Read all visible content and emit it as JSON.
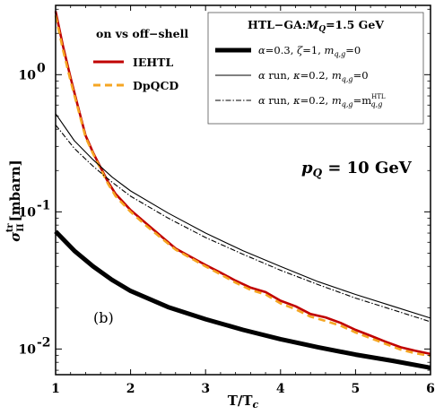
{
  "chart_data": {
    "type": "line",
    "xlabel": "T/T",
    "xlabel_sub": "c",
    "ylabel": "σ",
    "ylabel_sup": "tr",
    "ylabel_sub": "II",
    "ylabel_unit": "[mbarn]",
    "xlim": [
      1,
      6
    ],
    "ylim": [
      0.0065,
      3.2
    ],
    "yscale": "log",
    "x_ticks": [
      1,
      2,
      3,
      4,
      5,
      6
    ],
    "x_tick_labels": [
      "1",
      "2",
      "3",
      "4",
      "5",
      "6"
    ],
    "y_ticks": [
      1,
      0.1,
      0.01
    ],
    "y_tick_labels": [
      "10",
      "10",
      "10"
    ],
    "y_tick_exponents": [
      "0",
      "-1",
      "-2"
    ],
    "annotation": "p",
    "annotation_sub": "Q",
    "annotation_value": " = 10 GeV",
    "panel_label": "(b)",
    "legend_left": {
      "title": "on vs off−shell",
      "entries": [
        "IEHTL",
        "DpQCD"
      ]
    },
    "legend_right": {
      "title_prefix": "HTL−GA:",
      "title_var": "M",
      "title_sub": "Q",
      "title_suffix": "=1.5 GeV",
      "entries": [
        {
          "greek": "α",
          "rest": "=0.3, ",
          "greek2": "ζ",
          "rest2": "=1, ",
          "m": "m",
          "msub": "q,g",
          "tail": "=0",
          "msup": ""
        },
        {
          "greek": "α",
          "rest": " run, ",
          "greek2": "κ",
          "rest2": "=0.2, ",
          "m": "m",
          "msub": "q,g",
          "tail": "=0",
          "msup": ""
        },
        {
          "greek": "α",
          "rest": " run, ",
          "greek2": "κ",
          "rest2": "=0.2, ",
          "m": "m",
          "msub": "q,g",
          "tail": "=m",
          "msup": "HTL",
          "tailsub": "q,g"
        }
      ]
    },
    "series": [
      {
        "name": "IEHTL",
        "color": "#c00000",
        "x": [
          1.0,
          1.1,
          1.2,
          1.3,
          1.4,
          1.5,
          1.6,
          1.7,
          1.8,
          1.9,
          2.0,
          2.2,
          2.4,
          2.6,
          2.8,
          3.0,
          3.2,
          3.4,
          3.6,
          3.8,
          4.0,
          4.2,
          4.4,
          4.6,
          4.8,
          5.0,
          5.2,
          5.4,
          5.6,
          5.8,
          6.0
        ],
        "y": [
          2.9,
          1.6,
          0.95,
          0.58,
          0.36,
          0.27,
          0.21,
          0.165,
          0.135,
          0.118,
          0.103,
          0.083,
          0.067,
          0.054,
          0.047,
          0.041,
          0.036,
          0.0315,
          0.028,
          0.026,
          0.0225,
          0.0205,
          0.018,
          0.017,
          0.0155,
          0.0138,
          0.0125,
          0.0113,
          0.0103,
          0.0097,
          0.0092
        ]
      },
      {
        "name": "DpQCD",
        "color": "#f5a623",
        "x": [
          1.0,
          1.1,
          1.2,
          1.3,
          1.4,
          1.5,
          1.6,
          1.7,
          1.8,
          1.9,
          2.0,
          2.2,
          2.4,
          2.6,
          2.8,
          3.0,
          3.2,
          3.4,
          3.6,
          3.8,
          4.0,
          4.2,
          4.4,
          4.6,
          4.8,
          5.0,
          5.2,
          5.4,
          5.6,
          5.8,
          6.0
        ],
        "y": [
          2.7,
          1.5,
          0.9,
          0.56,
          0.35,
          0.265,
          0.205,
          0.16,
          0.13,
          0.114,
          0.1,
          0.08,
          0.065,
          0.053,
          0.046,
          0.04,
          0.035,
          0.0305,
          0.027,
          0.025,
          0.0215,
          0.0195,
          0.0172,
          0.016,
          0.0148,
          0.0132,
          0.012,
          0.0109,
          0.0099,
          0.0093,
          0.0089
        ]
      },
      {
        "name": "α=0.3, ζ=1, m=0",
        "color": "#000000",
        "x": [
          1.0,
          1.25,
          1.5,
          1.75,
          2.0,
          2.5,
          3.0,
          3.5,
          4.0,
          4.5,
          5.0,
          5.5,
          6.0
        ],
        "y": [
          0.072,
          0.052,
          0.04,
          0.032,
          0.0265,
          0.0202,
          0.0165,
          0.0138,
          0.0118,
          0.0103,
          0.0091,
          0.0082,
          0.0073
        ]
      },
      {
        "name": "α run, κ=0.2, m=0",
        "color": "#000000",
        "x": [
          1.0,
          1.25,
          1.5,
          1.75,
          2.0,
          2.5,
          3.0,
          3.5,
          4.0,
          4.5,
          5.0,
          5.5,
          6.0
        ],
        "y": [
          0.52,
          0.33,
          0.24,
          0.18,
          0.142,
          0.098,
          0.07,
          0.052,
          0.04,
          0.031,
          0.025,
          0.0205,
          0.0168
        ]
      },
      {
        "name": "α run, κ=0.2, m=m HTL",
        "color": "#000000",
        "x": [
          1.0,
          1.25,
          1.5,
          1.75,
          2.0,
          2.5,
          3.0,
          3.5,
          4.0,
          4.5,
          5.0,
          5.5,
          6.0
        ],
        "y": [
          0.43,
          0.29,
          0.215,
          0.165,
          0.13,
          0.09,
          0.065,
          0.049,
          0.0375,
          0.0295,
          0.0235,
          0.0193,
          0.0158
        ]
      }
    ]
  }
}
